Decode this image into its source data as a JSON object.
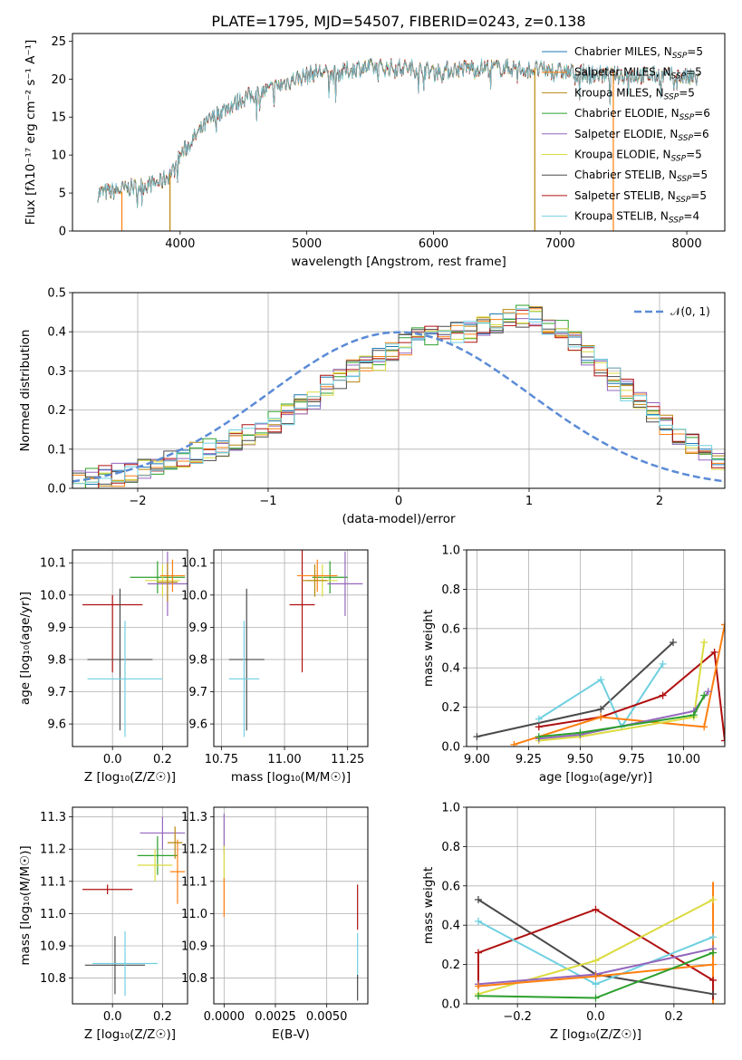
{
  "title": "PLATE=1795, MJD=54507, FIBERID=0243, z=0.138",
  "colors": {
    "chabrier_miles": "#1f77b4",
    "salpeter_miles": "#ff7f0e",
    "kroupa_miles": "#b8860b",
    "chabrier_elodie": "#2ca02c",
    "salpeter_elodie": "#9467bd",
    "kroupa_elodie": "#dbdb40",
    "chabrier_stelib": "#4a4a4a",
    "salpeter_stelib": "#b01010",
    "kroupa_stelib": "#6fd0e0",
    "gaussian": "#5b8bd6",
    "grid": "#b0b0b0"
  },
  "chart_data": [
    {
      "type": "line",
      "id": "spectrum",
      "xlabel": "wavelength [Angstrom, rest frame]",
      "ylabel": "Flux [fλ10⁻¹⁷ erg cm⁻² s⁻¹ A⁻¹]",
      "xlim": [
        3150,
        8300
      ],
      "ylim": [
        0,
        26
      ],
      "xticks": [
        4000,
        5000,
        6000,
        7000,
        8000
      ],
      "yticks": [
        0,
        5,
        10,
        15,
        20,
        25
      ],
      "grid": false,
      "legend_position": "right",
      "continuum": {
        "x": [
          3350,
          3500,
          3700,
          3850,
          3950,
          4000,
          4100,
          4200,
          4300,
          4500,
          4700,
          4900,
          5100,
          5200,
          5400,
          5600,
          5800,
          6000,
          6300,
          6600,
          7000,
          7400,
          7800,
          8100
        ],
        "y": [
          5,
          5.3,
          6,
          6.5,
          8,
          10,
          12,
          14,
          15.5,
          17.5,
          18.5,
          20,
          21,
          20.5,
          21.5,
          21.5,
          21.5,
          21,
          21.5,
          21.5,
          21,
          20.5,
          20.5,
          20
        ]
      },
      "series": [
        {
          "name": "Chabrier MILES, N_SSP=5",
          "color_key": "chabrier_miles"
        },
        {
          "name": "Salpeter MILES, N_SSP=5",
          "color_key": "salpeter_miles"
        },
        {
          "name": "Kroupa MILES, N_SSP=5",
          "color_key": "kroupa_miles"
        },
        {
          "name": "Chabrier ELODIE, N_SSP=6",
          "color_key": "chabrier_elodie"
        },
        {
          "name": "Salpeter ELODIE, N_SSP=6",
          "color_key": "salpeter_elodie"
        },
        {
          "name": "Kroupa ELODIE, N_SSP=5",
          "color_key": "kroupa_elodie"
        },
        {
          "name": "Chabrier STELIB, N_SSP=5",
          "color_key": "chabrier_stelib"
        },
        {
          "name": "Salpeter STELIB, N_SSP=5",
          "color_key": "salpeter_stelib"
        },
        {
          "name": "Kroupa STELIB, N_SSP=4",
          "color_key": "kroupa_stelib"
        }
      ],
      "spikes": [
        {
          "x": 3540,
          "y0": 0,
          "y1": 5.2,
          "color_key": "salpeter_miles"
        },
        {
          "x": 3920,
          "y0": 0,
          "y1": 7.5,
          "color_key": "kroupa_miles"
        },
        {
          "x": 6800,
          "y0": 0,
          "y1": 21.5,
          "color_key": "kroupa_miles"
        },
        {
          "x": 7420,
          "y0": 0,
          "y1": 21,
          "color_key": "salpeter_miles"
        }
      ]
    },
    {
      "type": "bar",
      "id": "residuals",
      "xlabel": "(data-model)/error",
      "ylabel": "Normed distribution",
      "xlim": [
        -2.5,
        2.5
      ],
      "ylim": [
        0,
        0.5
      ],
      "xticks": [
        -2,
        -1,
        0,
        1,
        2
      ],
      "xticklabels": [
        "−2",
        "−1",
        "0",
        "1",
        "2"
      ],
      "yticks": [
        0.0,
        0.1,
        0.2,
        0.3,
        0.4,
        0.5
      ],
      "grid": true,
      "legend": [
        {
          "name": "𝒩(0, 1)",
          "style": "dashed",
          "color_key": "gaussian"
        }
      ],
      "legend_position": "top-right",
      "bin_width": 0.1,
      "bin_start": -2.5,
      "base_values": [
        0.02,
        0.025,
        0.03,
        0.035,
        0.04,
        0.05,
        0.06,
        0.07,
        0.08,
        0.09,
        0.1,
        0.11,
        0.12,
        0.14,
        0.15,
        0.17,
        0.19,
        0.21,
        0.23,
        0.26,
        0.28,
        0.3,
        0.31,
        0.33,
        0.35,
        0.37,
        0.38,
        0.39,
        0.39,
        0.4,
        0.4,
        0.41,
        0.42,
        0.43,
        0.44,
        0.44,
        0.42,
        0.4,
        0.37,
        0.34,
        0.31,
        0.28,
        0.25,
        0.22,
        0.19,
        0.16,
        0.13,
        0.11,
        0.09,
        0.07,
        0.06,
        0.05,
        0.045,
        0.04,
        0.035,
        0.03,
        0.025,
        0.02,
        0.02,
        0.015
      ]
    },
    {
      "type": "scatter",
      "id": "age_vs_Z",
      "xlabel": "Z [log₁₀(Z/Z☉)]",
      "ylabel": "age  [log₁₀(age/yr)]",
      "xlim": [
        -0.16,
        0.3
      ],
      "ylim": [
        9.53,
        10.14
      ],
      "xticks": [
        0.0,
        0.2
      ],
      "xticklabels": [
        "0.0",
        "0.2"
      ],
      "yticks": [
        9.6,
        9.7,
        9.8,
        9.9,
        10.0,
        10.1
      ],
      "grid": true,
      "points": [
        {
          "x": 0.0,
          "y": 9.97,
          "xerr": 0.12,
          "yerr": 0.03,
          "color_key": "salpeter_stelib",
          "yerr_dn": 0.21
        },
        {
          "x": 0.03,
          "y": 9.8,
          "xerr": 0.13,
          "yerr": 0.22,
          "color_key": "chabrier_stelib"
        },
        {
          "x": 0.05,
          "y": 9.74,
          "xerr": 0.15,
          "yerr": 0.18,
          "color_key": "kroupa_stelib"
        },
        {
          "x": 0.18,
          "y": 10.055,
          "xerr": 0.11,
          "yerr": 0.05,
          "color_key": "chabrier_elodie"
        },
        {
          "x": 0.2,
          "y": 10.045,
          "xerr": 0.07,
          "yerr": 0.05,
          "color_key": "kroupa_elodie"
        },
        {
          "x": 0.22,
          "y": 10.035,
          "xerr": 0.08,
          "yerr": 0.1,
          "color_key": "salpeter_elodie"
        },
        {
          "x": 0.24,
          "y": 10.06,
          "xerr": 0.05,
          "yerr": 0.05,
          "color_key": "salpeter_miles"
        },
        {
          "x": 0.22,
          "y": 10.04,
          "xerr": 0.04,
          "yerr": 0.06,
          "color_key": "kroupa_miles"
        }
      ]
    },
    {
      "type": "scatter",
      "id": "age_vs_mass",
      "xlabel": "mass [log₁₀(M/M☉)]",
      "ylabel": "",
      "xlim": [
        10.72,
        11.33
      ],
      "ylim": [
        9.53,
        10.14
      ],
      "xticks": [
        10.75,
        11.0,
        11.25
      ],
      "xticklabels": [
        "10.75",
        "11.00",
        "11.25"
      ],
      "yticks": [
        9.6,
        9.7,
        9.8,
        9.9,
        10.0,
        10.1
      ],
      "grid": true,
      "points": [
        {
          "x": 11.07,
          "y": 9.97,
          "xerr": 0.05,
          "yerr": 0.21,
          "color_key": "salpeter_stelib"
        },
        {
          "x": 10.85,
          "y": 9.8,
          "xerr": 0.07,
          "yerr": 0.22,
          "color_key": "chabrier_stelib"
        },
        {
          "x": 10.84,
          "y": 9.74,
          "xerr": 0.06,
          "yerr": 0.18,
          "color_key": "kroupa_stelib"
        },
        {
          "x": 11.18,
          "y": 10.055,
          "xerr": 0.07,
          "yerr": 0.05,
          "color_key": "chabrier_elodie"
        },
        {
          "x": 11.15,
          "y": 10.045,
          "xerr": 0.06,
          "yerr": 0.05,
          "color_key": "kroupa_elodie"
        },
        {
          "x": 11.24,
          "y": 10.035,
          "xerr": 0.07,
          "yerr": 0.1,
          "color_key": "salpeter_elodie"
        },
        {
          "x": 11.13,
          "y": 10.06,
          "xerr": 0.08,
          "yerr": 0.05,
          "color_key": "salpeter_miles"
        },
        {
          "x": 11.12,
          "y": 10.045,
          "xerr": 0.05,
          "yerr": 0.05,
          "color_key": "kroupa_miles"
        }
      ]
    },
    {
      "type": "line",
      "id": "weight_vs_age",
      "xlabel": "age  [log₁₀(age/yr)]",
      "ylabel": "mass weight",
      "xlim": [
        8.95,
        10.2
      ],
      "ylim": [
        0,
        1.0
      ],
      "xticks": [
        9.0,
        9.25,
        9.5,
        9.75,
        10.0
      ],
      "xticklabels": [
        "9.00",
        "9.25",
        "9.50",
        "9.75",
        "10.00"
      ],
      "yticks": [
        0.0,
        0.2,
        0.4,
        0.6,
        0.8,
        1.0
      ],
      "grid": true,
      "series": [
        {
          "color_key": "chabrier_stelib",
          "x": [
            9.0,
            9.6,
            9.95
          ],
          "y": [
            0.05,
            0.19,
            0.53
          ]
        },
        {
          "color_key": "kroupa_stelib",
          "x": [
            9.3,
            9.6,
            9.7,
            9.9
          ],
          "y": [
            0.14,
            0.34,
            0.1,
            0.42
          ]
        },
        {
          "color_key": "salpeter_stelib",
          "x": [
            9.3,
            9.6,
            9.9,
            10.15,
            10.2
          ],
          "y": [
            0.1,
            0.15,
            0.26,
            0.48,
            0.03
          ]
        },
        {
          "color_key": "salpeter_miles",
          "x": [
            9.18,
            9.6,
            10.1,
            10.2
          ],
          "y": [
            0.01,
            0.15,
            0.1,
            0.62
          ]
        },
        {
          "color_key": "kroupa_elodie",
          "x": [
            9.3,
            9.5,
            10.05,
            10.1
          ],
          "y": [
            0.03,
            0.05,
            0.15,
            0.53
          ]
        },
        {
          "color_key": "salpeter_elodie",
          "x": [
            9.3,
            9.5,
            10.05,
            10.12
          ],
          "y": [
            0.04,
            0.06,
            0.18,
            0.28
          ]
        },
        {
          "color_key": "chabrier_elodie",
          "x": [
            9.3,
            9.5,
            10.05,
            10.1
          ],
          "y": [
            0.05,
            0.07,
            0.16,
            0.26
          ]
        }
      ]
    },
    {
      "type": "scatter",
      "id": "mass_vs_Z",
      "xlabel": "Z [log₁₀(Z/Z☉)]",
      "ylabel": "mass [log₁₀(M/M☉)]",
      "xlim": [
        -0.16,
        0.3
      ],
      "ylim": [
        10.72,
        11.33
      ],
      "xticks": [
        0.0,
        0.2
      ],
      "xticklabels": [
        "0.0",
        "0.2"
      ],
      "yticks": [
        10.8,
        10.9,
        11.0,
        11.1,
        11.2,
        11.3
      ],
      "grid": true,
      "points": [
        {
          "x": -0.02,
          "y": 11.075,
          "xerr": 0.1,
          "yerr": 0.015,
          "color_key": "salpeter_stelib"
        },
        {
          "x": 0.01,
          "y": 10.84,
          "xerr": 0.12,
          "yerr": 0.09,
          "color_key": "chabrier_stelib"
        },
        {
          "x": 0.05,
          "y": 10.845,
          "xerr": 0.13,
          "yerr": 0.1,
          "color_key": "kroupa_stelib"
        },
        {
          "x": 0.18,
          "y": 11.18,
          "xerr": 0.08,
          "yerr": 0.06,
          "color_key": "chabrier_elodie"
        },
        {
          "x": 0.17,
          "y": 11.15,
          "xerr": 0.07,
          "yerr": 0.05,
          "color_key": "kroupa_elodie"
        },
        {
          "x": 0.2,
          "y": 11.25,
          "xerr": 0.09,
          "yerr": 0.05,
          "color_key": "salpeter_elodie"
        },
        {
          "x": 0.26,
          "y": 11.13,
          "xerr": 0.03,
          "yerr": 0.1,
          "color_key": "salpeter_miles"
        },
        {
          "x": 0.25,
          "y": 11.22,
          "xerr": 0.03,
          "yerr": 0.05,
          "color_key": "kroupa_miles"
        }
      ]
    },
    {
      "type": "scatter",
      "id": "mass_vs_ebv",
      "xlabel": "E(B-V)",
      "ylabel": "",
      "xlim": [
        -0.0005,
        0.007
      ],
      "ylim": [
        10.72,
        11.33
      ],
      "xticks": [
        0.0,
        0.0025,
        0.005
      ],
      "xticklabels": [
        "0.0000",
        "0.0025",
        "0.0050"
      ],
      "yticks": [
        10.8,
        10.9,
        11.0,
        11.1,
        11.2,
        11.3
      ],
      "grid": true,
      "points": [
        {
          "x": 0.0,
          "y": 11.25,
          "xerr": 0,
          "yerr": 0.06,
          "color_key": "salpeter_elodie"
        },
        {
          "x": 0.0,
          "y": 11.15,
          "xerr": 0,
          "yerr": 0.06,
          "color_key": "kroupa_elodie"
        },
        {
          "x": 0.0,
          "y": 11.05,
          "xerr": 0,
          "yerr": 0.06,
          "color_key": "salpeter_miles"
        },
        {
          "x": 0.0065,
          "y": 11.02,
          "xerr": 0,
          "yerr": 0.07,
          "color_key": "salpeter_stelib"
        },
        {
          "x": 0.0065,
          "y": 10.87,
          "xerr": 0,
          "yerr": 0.07,
          "color_key": "kroupa_stelib"
        },
        {
          "x": 0.0065,
          "y": 10.77,
          "xerr": 0,
          "yerr": 0.04,
          "color_key": "chabrier_stelib"
        }
      ]
    },
    {
      "type": "line",
      "id": "weight_vs_Z",
      "xlabel": "Z [log₁₀(Z/Z☉)]",
      "ylabel": "mass weight",
      "xlim": [
        -0.33,
        0.33
      ],
      "ylim": [
        0,
        1.0
      ],
      "xticks": [
        -0.2,
        0.0,
        0.2
      ],
      "xticklabels": [
        "−0.2",
        "0.0",
        "0.2"
      ],
      "yticks": [
        0.0,
        0.2,
        0.4,
        0.6,
        0.8,
        1.0
      ],
      "grid": true,
      "series": [
        {
          "color_key": "chabrier_stelib",
          "x": [
            -0.3,
            0.0,
            0.3
          ],
          "y": [
            0.53,
            0.15,
            0.05
          ]
        },
        {
          "color_key": "salpeter_stelib",
          "x": [
            -0.3,
            0.0,
            0.3
          ],
          "y": [
            0.26,
            0.48,
            0.12
          ]
        },
        {
          "color_key": "kroupa_stelib",
          "x": [
            -0.3,
            0.0,
            0.3
          ],
          "y": [
            0.42,
            0.1,
            0.34
          ]
        },
        {
          "color_key": "kroupa_elodie",
          "x": [
            -0.3,
            0.0,
            0.3
          ],
          "y": [
            0.05,
            0.22,
            0.53
          ]
        },
        {
          "color_key": "salpeter_elodie",
          "x": [
            -0.3,
            0.0,
            0.3
          ],
          "y": [
            0.1,
            0.15,
            0.28
          ]
        },
        {
          "color_key": "salpeter_miles",
          "x": [
            -0.3,
            0.0,
            0.3
          ],
          "y": [
            0.09,
            0.14,
            0.2
          ]
        },
        {
          "color_key": "chabrier_elodie",
          "x": [
            -0.3,
            0.0,
            0.3
          ],
          "y": [
            0.04,
            0.03,
            0.26
          ]
        }
      ],
      "vertical_stacks": [
        {
          "x": 0.3,
          "y0": 0.0,
          "y1": 0.62,
          "color_key": "salpeter_miles"
        },
        {
          "x": -0.3,
          "y0": 0.08,
          "y1": 0.26,
          "color_key": "salpeter_stelib"
        },
        {
          "x": 0.3,
          "y0": 0.02,
          "y1": 0.12,
          "color_key": "salpeter_stelib"
        }
      ]
    }
  ]
}
